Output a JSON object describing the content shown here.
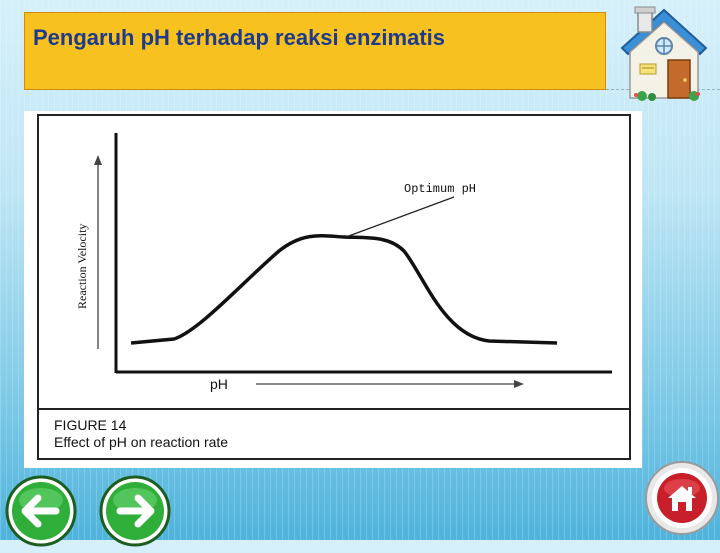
{
  "slide": {
    "title": "Pengaruh pH terhadap reaksi enzimatis"
  },
  "figure": {
    "y_axis_label": "Reaction Velocity",
    "x_axis_label": "pH",
    "annotation": "Optimum pH",
    "caption_line1": "FIGURE 14",
    "caption_line2": "Effect of pH on reaction rate"
  },
  "icons": {
    "home_top": "house-icon",
    "prev": "arrow-left-icon",
    "next": "arrow-right-icon",
    "home_bottom": "home-icon"
  },
  "colors": {
    "title_bg": "#f7c21f",
    "title_text": "#1d3a8c",
    "nav_green": "#2fae3a",
    "home_red": "#c8202a"
  }
}
